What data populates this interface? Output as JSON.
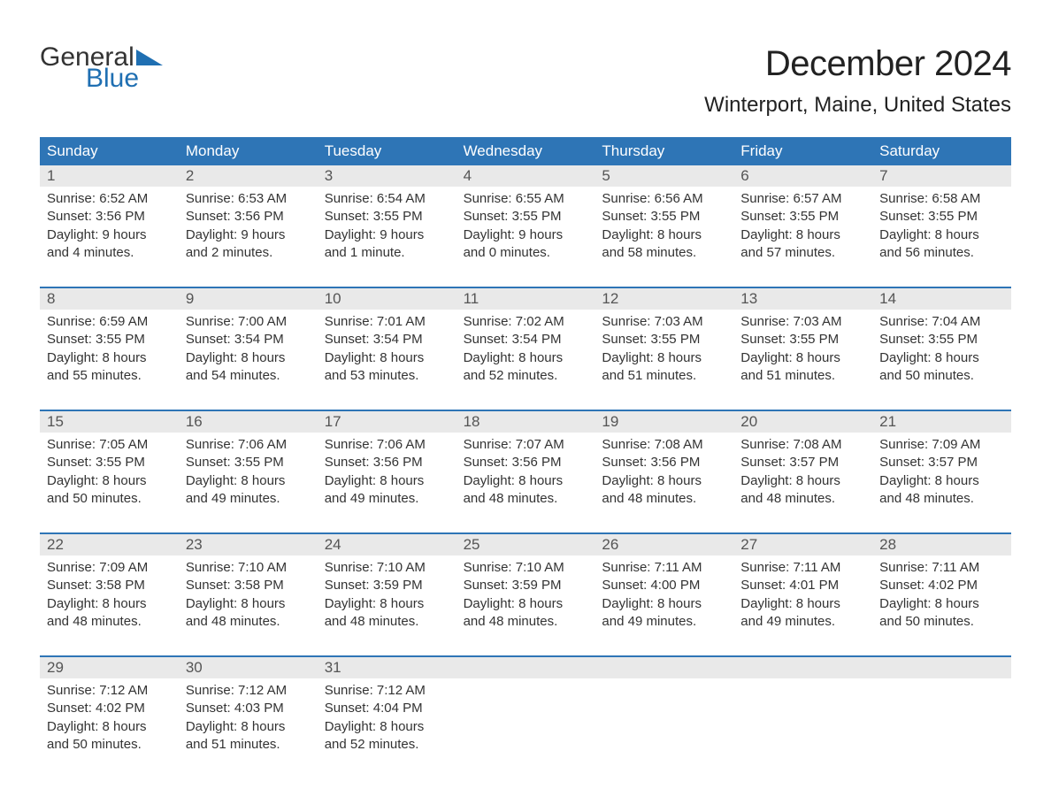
{
  "logo": {
    "word1": "General",
    "word2": "Blue"
  },
  "title": "December 2024",
  "location": "Winterport, Maine, United States",
  "colors": {
    "header_bg": "#2e75b6",
    "header_text": "#ffffff",
    "accent_line": "#2e75b6",
    "daynum_bg": "#e9e9e9",
    "body_text": "#333333",
    "logo_blue": "#1f6fb2"
  },
  "day_names": [
    "Sunday",
    "Monday",
    "Tuesday",
    "Wednesday",
    "Thursday",
    "Friday",
    "Saturday"
  ],
  "weeks": [
    [
      {
        "n": "1",
        "sr": "Sunrise: 6:52 AM",
        "ss": "Sunset: 3:56 PM",
        "d1": "Daylight: 9 hours",
        "d2": "and 4 minutes."
      },
      {
        "n": "2",
        "sr": "Sunrise: 6:53 AM",
        "ss": "Sunset: 3:56 PM",
        "d1": "Daylight: 9 hours",
        "d2": "and 2 minutes."
      },
      {
        "n": "3",
        "sr": "Sunrise: 6:54 AM",
        "ss": "Sunset: 3:55 PM",
        "d1": "Daylight: 9 hours",
        "d2": "and 1 minute."
      },
      {
        "n": "4",
        "sr": "Sunrise: 6:55 AM",
        "ss": "Sunset: 3:55 PM",
        "d1": "Daylight: 9 hours",
        "d2": "and 0 minutes."
      },
      {
        "n": "5",
        "sr": "Sunrise: 6:56 AM",
        "ss": "Sunset: 3:55 PM",
        "d1": "Daylight: 8 hours",
        "d2": "and 58 minutes."
      },
      {
        "n": "6",
        "sr": "Sunrise: 6:57 AM",
        "ss": "Sunset: 3:55 PM",
        "d1": "Daylight: 8 hours",
        "d2": "and 57 minutes."
      },
      {
        "n": "7",
        "sr": "Sunrise: 6:58 AM",
        "ss": "Sunset: 3:55 PM",
        "d1": "Daylight: 8 hours",
        "d2": "and 56 minutes."
      }
    ],
    [
      {
        "n": "8",
        "sr": "Sunrise: 6:59 AM",
        "ss": "Sunset: 3:55 PM",
        "d1": "Daylight: 8 hours",
        "d2": "and 55 minutes."
      },
      {
        "n": "9",
        "sr": "Sunrise: 7:00 AM",
        "ss": "Sunset: 3:54 PM",
        "d1": "Daylight: 8 hours",
        "d2": "and 54 minutes."
      },
      {
        "n": "10",
        "sr": "Sunrise: 7:01 AM",
        "ss": "Sunset: 3:54 PM",
        "d1": "Daylight: 8 hours",
        "d2": "and 53 minutes."
      },
      {
        "n": "11",
        "sr": "Sunrise: 7:02 AM",
        "ss": "Sunset: 3:54 PM",
        "d1": "Daylight: 8 hours",
        "d2": "and 52 minutes."
      },
      {
        "n": "12",
        "sr": "Sunrise: 7:03 AM",
        "ss": "Sunset: 3:55 PM",
        "d1": "Daylight: 8 hours",
        "d2": "and 51 minutes."
      },
      {
        "n": "13",
        "sr": "Sunrise: 7:03 AM",
        "ss": "Sunset: 3:55 PM",
        "d1": "Daylight: 8 hours",
        "d2": "and 51 minutes."
      },
      {
        "n": "14",
        "sr": "Sunrise: 7:04 AM",
        "ss": "Sunset: 3:55 PM",
        "d1": "Daylight: 8 hours",
        "d2": "and 50 minutes."
      }
    ],
    [
      {
        "n": "15",
        "sr": "Sunrise: 7:05 AM",
        "ss": "Sunset: 3:55 PM",
        "d1": "Daylight: 8 hours",
        "d2": "and 50 minutes."
      },
      {
        "n": "16",
        "sr": "Sunrise: 7:06 AM",
        "ss": "Sunset: 3:55 PM",
        "d1": "Daylight: 8 hours",
        "d2": "and 49 minutes."
      },
      {
        "n": "17",
        "sr": "Sunrise: 7:06 AM",
        "ss": "Sunset: 3:56 PM",
        "d1": "Daylight: 8 hours",
        "d2": "and 49 minutes."
      },
      {
        "n": "18",
        "sr": "Sunrise: 7:07 AM",
        "ss": "Sunset: 3:56 PM",
        "d1": "Daylight: 8 hours",
        "d2": "and 48 minutes."
      },
      {
        "n": "19",
        "sr": "Sunrise: 7:08 AM",
        "ss": "Sunset: 3:56 PM",
        "d1": "Daylight: 8 hours",
        "d2": "and 48 minutes."
      },
      {
        "n": "20",
        "sr": "Sunrise: 7:08 AM",
        "ss": "Sunset: 3:57 PM",
        "d1": "Daylight: 8 hours",
        "d2": "and 48 minutes."
      },
      {
        "n": "21",
        "sr": "Sunrise: 7:09 AM",
        "ss": "Sunset: 3:57 PM",
        "d1": "Daylight: 8 hours",
        "d2": "and 48 minutes."
      }
    ],
    [
      {
        "n": "22",
        "sr": "Sunrise: 7:09 AM",
        "ss": "Sunset: 3:58 PM",
        "d1": "Daylight: 8 hours",
        "d2": "and 48 minutes."
      },
      {
        "n": "23",
        "sr": "Sunrise: 7:10 AM",
        "ss": "Sunset: 3:58 PM",
        "d1": "Daylight: 8 hours",
        "d2": "and 48 minutes."
      },
      {
        "n": "24",
        "sr": "Sunrise: 7:10 AM",
        "ss": "Sunset: 3:59 PM",
        "d1": "Daylight: 8 hours",
        "d2": "and 48 minutes."
      },
      {
        "n": "25",
        "sr": "Sunrise: 7:10 AM",
        "ss": "Sunset: 3:59 PM",
        "d1": "Daylight: 8 hours",
        "d2": "and 48 minutes."
      },
      {
        "n": "26",
        "sr": "Sunrise: 7:11 AM",
        "ss": "Sunset: 4:00 PM",
        "d1": "Daylight: 8 hours",
        "d2": "and 49 minutes."
      },
      {
        "n": "27",
        "sr": "Sunrise: 7:11 AM",
        "ss": "Sunset: 4:01 PM",
        "d1": "Daylight: 8 hours",
        "d2": "and 49 minutes."
      },
      {
        "n": "28",
        "sr": "Sunrise: 7:11 AM",
        "ss": "Sunset: 4:02 PM",
        "d1": "Daylight: 8 hours",
        "d2": "and 50 minutes."
      }
    ],
    [
      {
        "n": "29",
        "sr": "Sunrise: 7:12 AM",
        "ss": "Sunset: 4:02 PM",
        "d1": "Daylight: 8 hours",
        "d2": "and 50 minutes."
      },
      {
        "n": "30",
        "sr": "Sunrise: 7:12 AM",
        "ss": "Sunset: 4:03 PM",
        "d1": "Daylight: 8 hours",
        "d2": "and 51 minutes."
      },
      {
        "n": "31",
        "sr": "Sunrise: 7:12 AM",
        "ss": "Sunset: 4:04 PM",
        "d1": "Daylight: 8 hours",
        "d2": "and 52 minutes."
      },
      {
        "n": "",
        "sr": "",
        "ss": "",
        "d1": "",
        "d2": ""
      },
      {
        "n": "",
        "sr": "",
        "ss": "",
        "d1": "",
        "d2": ""
      },
      {
        "n": "",
        "sr": "",
        "ss": "",
        "d1": "",
        "d2": ""
      },
      {
        "n": "",
        "sr": "",
        "ss": "",
        "d1": "",
        "d2": ""
      }
    ]
  ]
}
